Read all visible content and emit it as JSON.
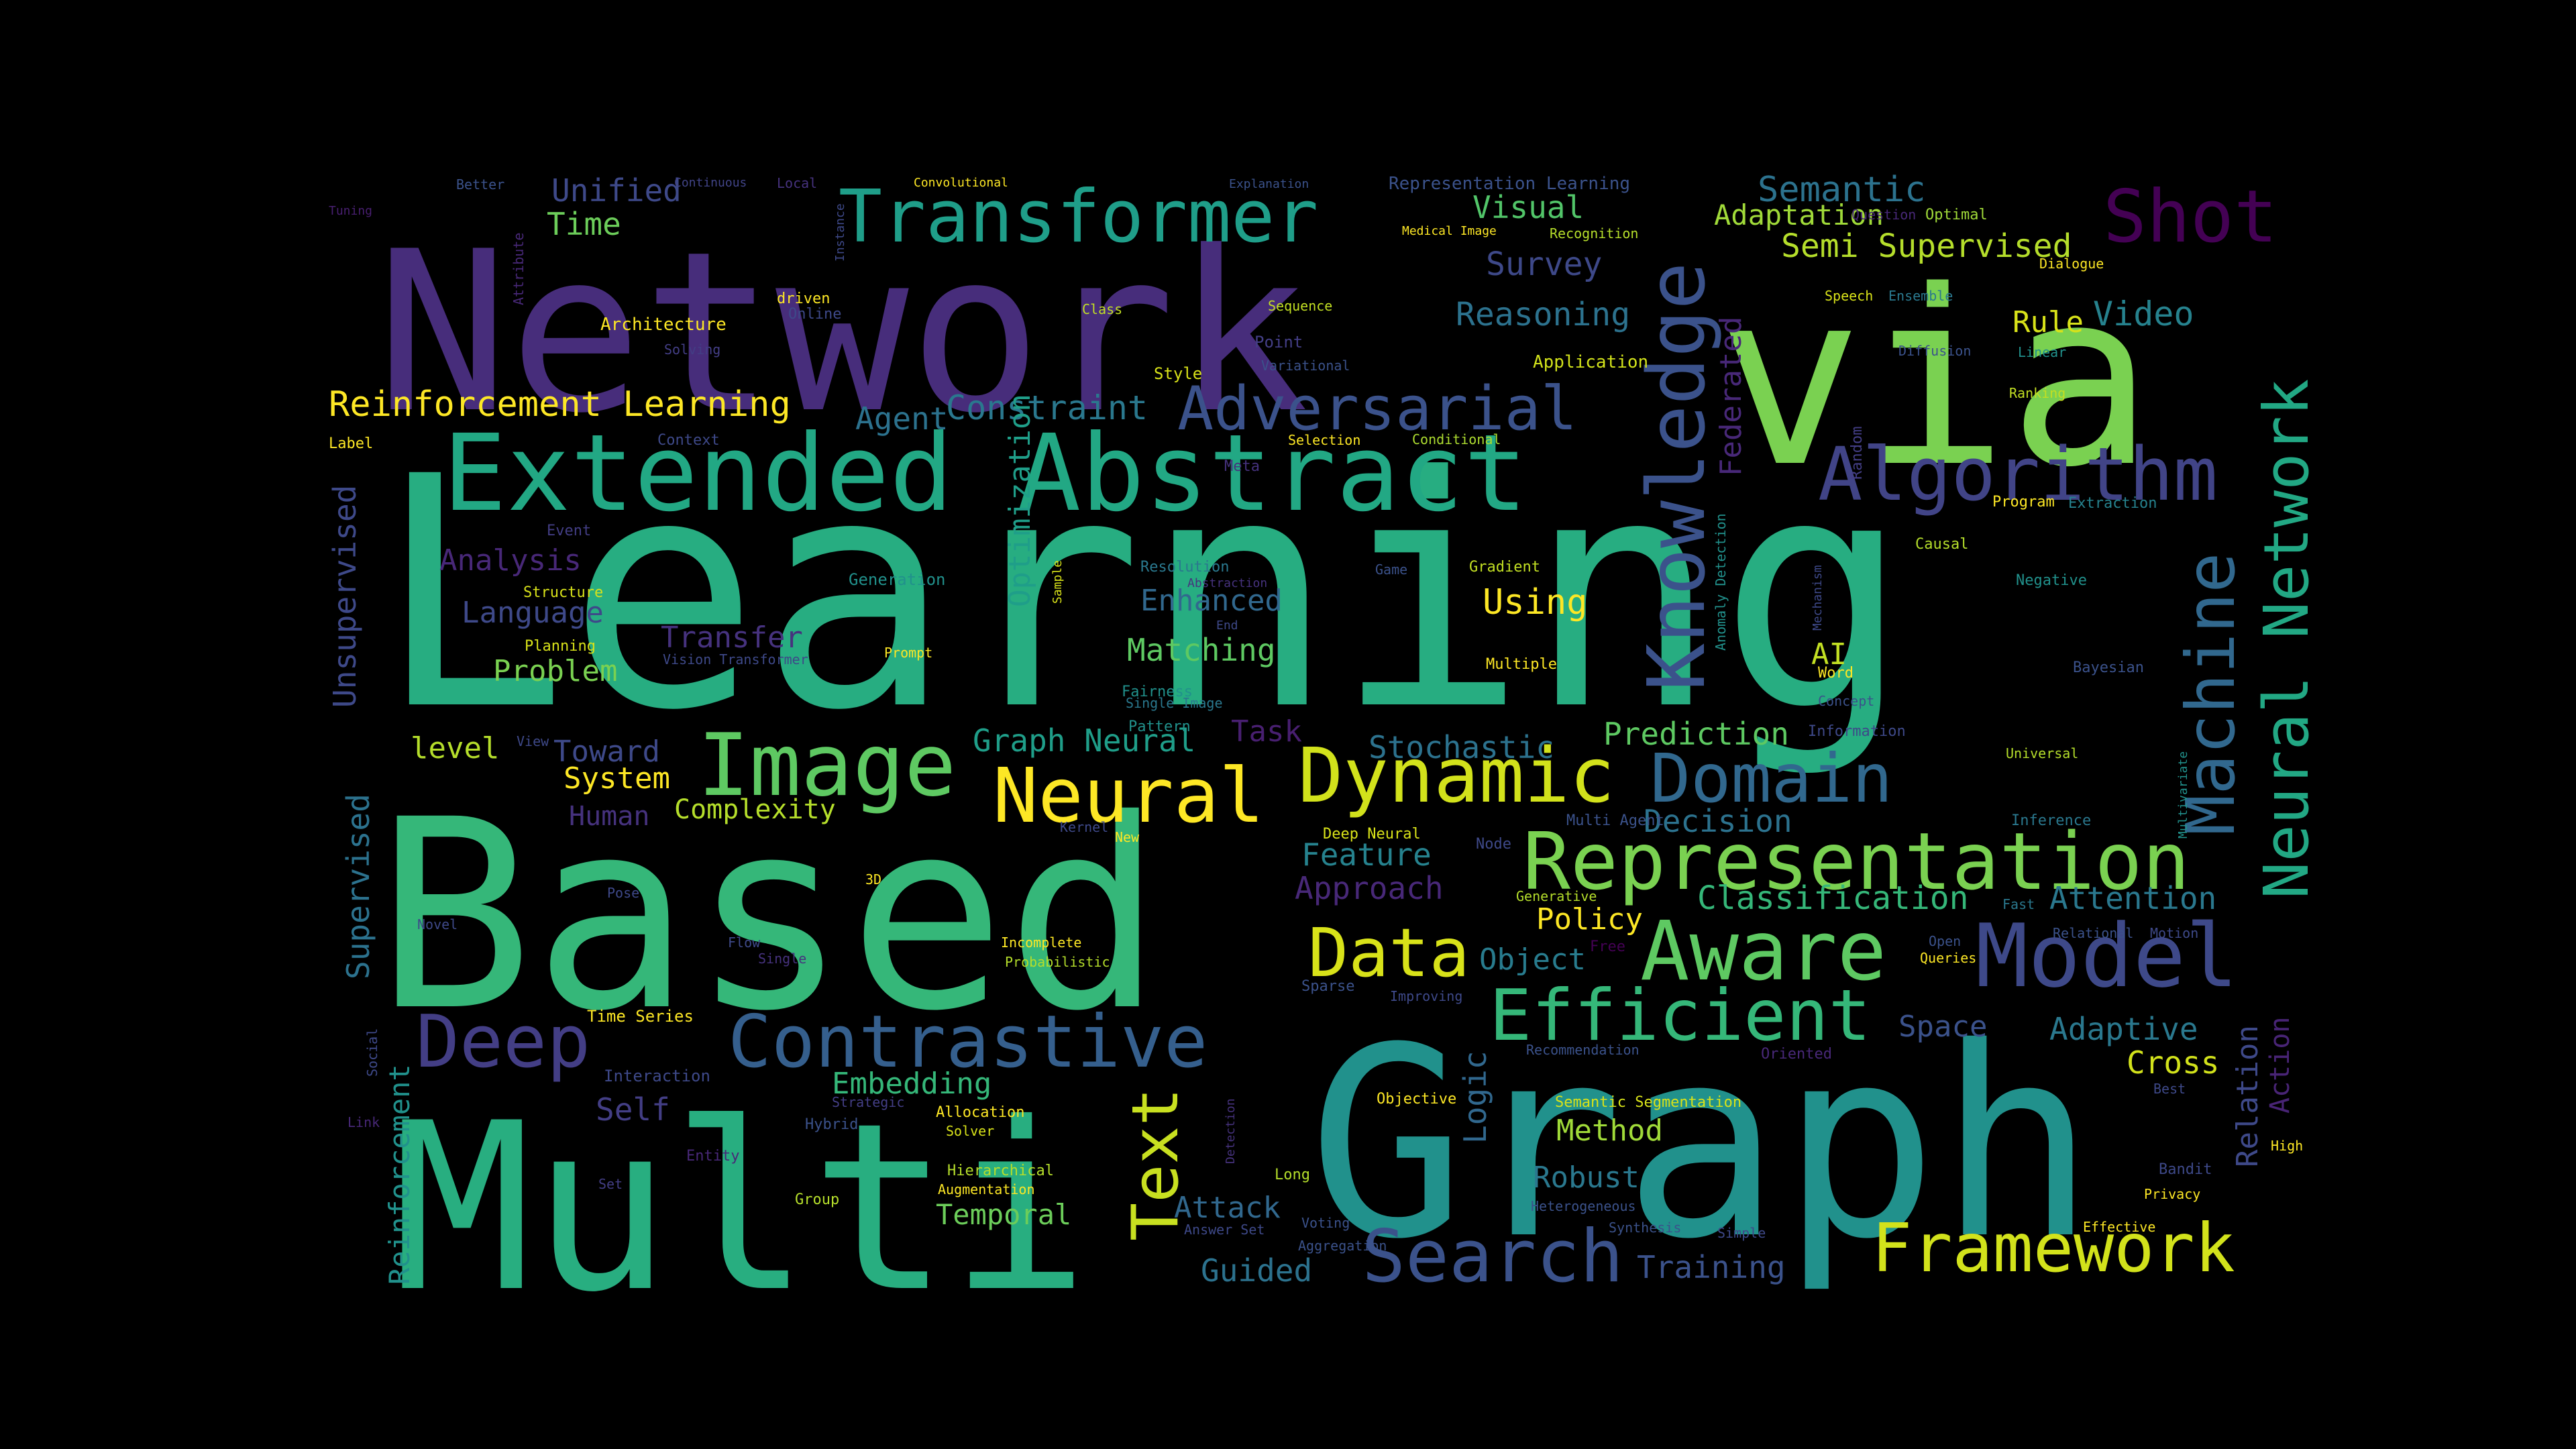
{
  "background": "#000000",
  "palette": {
    "p1": "#440154",
    "p2": "#472d7b",
    "p3": "#3b528b",
    "p4": "#2c728e",
    "p5": "#21918c",
    "p6": "#28ae80",
    "p7": "#5ec962",
    "p8": "#addc30",
    "p9": "#fde725"
  },
  "words": [
    {
      "text": "Learning",
      "color": "#27ad81"
    },
    {
      "text": "Network",
      "color": "#472d7b"
    },
    {
      "text": "via",
      "color": "#7ad151"
    },
    {
      "text": "Based",
      "color": "#35b779"
    },
    {
      "text": "Graph",
      "color": "#21918c"
    },
    {
      "text": "Multi",
      "color": "#28ae80"
    },
    {
      "text": "Extended Abstract",
      "color": "#22a884"
    },
    {
      "text": "Transformer",
      "color": "#1f9e89"
    },
    {
      "text": "Knowledge",
      "color": "#3b528b"
    },
    {
      "text": "Shot",
      "color": "#440154"
    },
    {
      "text": "Algorithm",
      "color": "#414487"
    },
    {
      "text": "Adversarial",
      "color": "#3b528b"
    },
    {
      "text": "Image",
      "color": "#5ec962"
    },
    {
      "text": "Neural",
      "color": "#fde725"
    },
    {
      "text": "Dynamic",
      "color": "#d2e21b"
    },
    {
      "text": "Domain",
      "color": "#31688e"
    },
    {
      "text": "Representation",
      "color": "#7ad151"
    },
    {
      "text": "Machine",
      "color": "#31688e"
    },
    {
      "text": "Neural Network",
      "color": "#22a884"
    },
    {
      "text": "Model",
      "color": "#3e4989"
    },
    {
      "text": "Aware",
      "color": "#5ec962"
    },
    {
      "text": "Data",
      "color": "#d8e219"
    },
    {
      "text": "Efficient",
      "color": "#35b779"
    },
    {
      "text": "Contrastive",
      "color": "#355f8d"
    },
    {
      "text": "Deep",
      "color": "#433e85"
    },
    {
      "text": "Text",
      "color": "#c8e020"
    },
    {
      "text": "Search",
      "color": "#3b528b"
    },
    {
      "text": "Framework",
      "color": "#d2e21b"
    },
    {
      "text": "Reinforcement Learning",
      "color": "#fde725"
    },
    {
      "text": "Semantic",
      "color": "#2c728e"
    },
    {
      "text": "Adaptation",
      "color": "#a0da39"
    },
    {
      "text": "Semi Supervised",
      "color": "#b5de2b"
    },
    {
      "text": "Unified",
      "color": "#3e4989"
    },
    {
      "text": "Time",
      "color": "#6ccd5a"
    },
    {
      "text": "Visual",
      "color": "#52c569"
    },
    {
      "text": "Survey",
      "color": "#3e4989"
    },
    {
      "text": "Reasoning",
      "color": "#2c728e"
    },
    {
      "text": "Rule",
      "color": "#d8e219"
    },
    {
      "text": "Video",
      "color": "#26828e"
    },
    {
      "text": "Agent",
      "color": "#2c728e"
    },
    {
      "text": "Constraint",
      "color": "#2a788e"
    },
    {
      "text": "Federated",
      "color": "#482878"
    },
    {
      "text": "Unsupervised",
      "color": "#3e4989"
    },
    {
      "text": "Optimization",
      "color": "#1f9e89"
    },
    {
      "text": "Analysis",
      "color": "#482878"
    },
    {
      "text": "Language",
      "color": "#3e4989"
    },
    {
      "text": "Transfer",
      "color": "#46327e"
    },
    {
      "text": "Problem",
      "color": "#7ad151"
    },
    {
      "text": "Enhanced",
      "color": "#31688e"
    },
    {
      "text": "Using",
      "color": "#fde725"
    },
    {
      "text": "Matching",
      "color": "#5ec962"
    },
    {
      "text": "AI",
      "color": "#c2df23"
    },
    {
      "text": "Prediction",
      "color": "#5ec962"
    },
    {
      "text": "Toward",
      "color": "#3e4989"
    },
    {
      "text": "level",
      "color": "#b5de2b"
    },
    {
      "text": "System",
      "color": "#fde725"
    },
    {
      "text": "Graph Neural",
      "color": "#1f9e89"
    },
    {
      "text": "Task",
      "color": "#481f70"
    },
    {
      "text": "Stochastic",
      "color": "#2c728e"
    },
    {
      "text": "Complexity",
      "color": "#b5de2b"
    },
    {
      "text": "Human",
      "color": "#46327e"
    },
    {
      "text": "Decision",
      "color": "#2c728e"
    },
    {
      "text": "Supervised",
      "color": "#2c728e"
    },
    {
      "text": "Feature",
      "color": "#26828e"
    },
    {
      "text": "Approach",
      "color": "#482878"
    },
    {
      "text": "Classification",
      "color": "#35b779"
    },
    {
      "text": "Attention",
      "color": "#2a788e"
    },
    {
      "text": "Policy",
      "color": "#fde725"
    },
    {
      "text": "Object",
      "color": "#287c8e"
    },
    {
      "text": "Space",
      "color": "#3b528b"
    },
    {
      "text": "Adaptive",
      "color": "#2a788e"
    },
    {
      "text": "Cross",
      "color": "#d2e21b"
    },
    {
      "text": "Relation",
      "color": "#3e4989"
    },
    {
      "text": "Action",
      "color": "#482475"
    },
    {
      "text": "Embedding",
      "color": "#35b779"
    },
    {
      "text": "Self",
      "color": "#433e85"
    },
    {
      "text": "Logic",
      "color": "#31688e"
    },
    {
      "text": "Method",
      "color": "#a0da39"
    },
    {
      "text": "Robust",
      "color": "#2a788e"
    },
    {
      "text": "Attack",
      "color": "#31688e"
    },
    {
      "text": "Temporal",
      "color": "#6ccd5a"
    },
    {
      "text": "Guided",
      "color": "#2c728e"
    },
    {
      "text": "Training",
      "color": "#3b528b"
    },
    {
      "text": "Reinforcement",
      "color": "#21918c"
    },
    {
      "text": "Tuning",
      "color": "#481f70"
    },
    {
      "text": "Better",
      "color": "#3b528b"
    },
    {
      "text": "Attribute",
      "color": "#482878"
    },
    {
      "text": "Continuous",
      "color": "#414487"
    },
    {
      "text": "Local",
      "color": "#46327e"
    },
    {
      "text": "Instance",
      "color": "#3e4989"
    },
    {
      "text": "Convolutional",
      "color": "#fde725"
    },
    {
      "text": "Explanation",
      "color": "#3b528b"
    },
    {
      "text": "Representation Learning",
      "color": "#3b528b"
    },
    {
      "text": "Medical Image",
      "color": "#fde725"
    },
    {
      "text": "Recognition",
      "color": "#b5de2b"
    },
    {
      "text": "Question",
      "color": "#482878"
    },
    {
      "text": "Optimal",
      "color": "#a0da39"
    },
    {
      "text": "Dialogue",
      "color": "#fde725"
    },
    {
      "text": "Architecture",
      "color": "#fde725"
    },
    {
      "text": "driven",
      "color": "#fde725"
    },
    {
      "text": "Online",
      "color": "#3e4989"
    },
    {
      "text": "Solving",
      "color": "#433e85"
    },
    {
      "text": "Class",
      "color": "#c2df23"
    },
    {
      "text": "Sequence",
      "color": "#c2df23"
    },
    {
      "text": "Speech",
      "color": "#d8e219"
    },
    {
      "text": "Ensemble",
      "color": "#2a788e"
    },
    {
      "text": "Point",
      "color": "#433e85"
    },
    {
      "text": "Variational",
      "color": "#3b528b"
    },
    {
      "text": "Application",
      "color": "#d2e21b"
    },
    {
      "text": "Diffusion",
      "color": "#3b528b"
    },
    {
      "text": "Linear",
      "color": "#21918c"
    },
    {
      "text": "Style",
      "color": "#d8e219"
    },
    {
      "text": "Ranking",
      "color": "#c2df23"
    },
    {
      "text": "Label",
      "color": "#fde725"
    },
    {
      "text": "Context",
      "color": "#3e4989"
    },
    {
      "text": "Selection",
      "color": "#fde725"
    },
    {
      "text": "Conditional",
      "color": "#addc30"
    },
    {
      "text": "Random",
      "color": "#433e85"
    },
    {
      "text": "Meta",
      "color": "#46327e"
    },
    {
      "text": "Program",
      "color": "#fde725"
    },
    {
      "text": "Extraction",
      "color": "#26828e"
    },
    {
      "text": "Event",
      "color": "#433e85"
    },
    {
      "text": "Causal",
      "color": "#b5de2b"
    },
    {
      "text": "Structure",
      "color": "#d8e219"
    },
    {
      "text": "Generation",
      "color": "#21918c"
    },
    {
      "text": "Sample",
      "color": "#d8e219"
    },
    {
      "text": "Resolution",
      "color": "#2a788e"
    },
    {
      "text": "Abstraction",
      "color": "#46327e"
    },
    {
      "text": "Game",
      "color": "#3b528b"
    },
    {
      "text": "Gradient",
      "color": "#c2df23"
    },
    {
      "text": "Anomaly Detection",
      "color": "#21918c"
    },
    {
      "text": "Mechanism",
      "color": "#3e4989"
    },
    {
      "text": "Negative",
      "color": "#21918c"
    },
    {
      "text": "Planning",
      "color": "#d8e219"
    },
    {
      "text": "Vision Transformer",
      "color": "#3e4989"
    },
    {
      "text": "Prompt",
      "color": "#fde725"
    },
    {
      "text": "End",
      "color": "#3e4989"
    },
    {
      "text": "Multiple",
      "color": "#fde725"
    },
    {
      "text": "Word",
      "color": "#fde725"
    },
    {
      "text": "Bayesian",
      "color": "#3b528b"
    },
    {
      "text": "Fairness",
      "color": "#21918c"
    },
    {
      "text": "Single Image",
      "color": "#2a788e"
    },
    {
      "text": "Concept",
      "color": "#3b528b"
    },
    {
      "text": "View",
      "color": "#3e4989"
    },
    {
      "text": "Pattern",
      "color": "#21918c"
    },
    {
      "text": "Information",
      "color": "#3e4989"
    },
    {
      "text": "Universal",
      "color": "#b5de2b"
    },
    {
      "text": "Multivariate",
      "color": "#21918c"
    },
    {
      "text": "Kernel",
      "color": "#3e4989"
    },
    {
      "text": "Deep Neural",
      "color": "#d8e219"
    },
    {
      "text": "New",
      "color": "#fde725"
    },
    {
      "text": "Multi Agent",
      "color": "#3b528b"
    },
    {
      "text": "Inference",
      "color": "#2a788e"
    },
    {
      "text": "Node",
      "color": "#3e4989"
    },
    {
      "text": "3D",
      "color": "#fde725"
    },
    {
      "text": "Pose",
      "color": "#3e4989"
    },
    {
      "text": "Generative",
      "color": "#b5de2b"
    },
    {
      "text": "Fast",
      "color": "#2a788e"
    },
    {
      "text": "Novel",
      "color": "#3e4989"
    },
    {
      "text": "Free",
      "color": "#440154"
    },
    {
      "text": "Relational",
      "color": "#3b528b"
    },
    {
      "text": "Motion",
      "color": "#3e4989"
    },
    {
      "text": "Flow",
      "color": "#3e4989"
    },
    {
      "text": "Single",
      "color": "#46327e"
    },
    {
      "text": "Incomplete",
      "color": "#fde725"
    },
    {
      "text": "Probabilistic",
      "color": "#b5de2b"
    },
    {
      "text": "Sparse",
      "color": "#3b528b"
    },
    {
      "text": "Open",
      "color": "#3b528b"
    },
    {
      "text": "Queries",
      "color": "#fde725"
    },
    {
      "text": "Improving",
      "color": "#3e4989"
    },
    {
      "text": "Time Series",
      "color": "#fde725"
    },
    {
      "text": "Social",
      "color": "#3e4989"
    },
    {
      "text": "Recommendation",
      "color": "#3b528b"
    },
    {
      "text": "Oriented",
      "color": "#482878"
    },
    {
      "text": "Interaction",
      "color": "#3e4989"
    },
    {
      "text": "Objective",
      "color": "#fde725"
    },
    {
      "text": "Best",
      "color": "#3e4989"
    },
    {
      "text": "Link",
      "color": "#482878"
    },
    {
      "text": "Strategic",
      "color": "#433e85"
    },
    {
      "text": "Allocation",
      "color": "#fde725"
    },
    {
      "text": "Hybrid",
      "color": "#3b528b"
    },
    {
      "text": "Solver",
      "color": "#d8e219"
    },
    {
      "text": "Detection",
      "color": "#46327e"
    },
    {
      "text": "Semantic Segmentation",
      "color": "#d8e219"
    },
    {
      "text": "Entity",
      "color": "#482878"
    },
    {
      "text": "High",
      "color": "#fde725"
    },
    {
      "text": "Hierarchical",
      "color": "#b5de2b"
    },
    {
      "text": "Augmentation",
      "color": "#fde725"
    },
    {
      "text": "Long",
      "color": "#b5de2b"
    },
    {
      "text": "Heterogeneous",
      "color": "#3b528b"
    },
    {
      "text": "Bandit",
      "color": "#3e4989"
    },
    {
      "text": "Set",
      "color": "#433e85"
    },
    {
      "text": "Group",
      "color": "#b5de2b"
    },
    {
      "text": "Privacy",
      "color": "#fde725"
    },
    {
      "text": "Answer Set",
      "color": "#3e4989"
    },
    {
      "text": "Voting",
      "color": "#3b528b"
    },
    {
      "text": "Synthesis",
      "color": "#3b528b"
    },
    {
      "text": "Simple",
      "color": "#3e4989"
    },
    {
      "text": "Effective",
      "color": "#fde725"
    },
    {
      "text": "Aggregation",
      "color": "#3b528b"
    }
  ]
}
